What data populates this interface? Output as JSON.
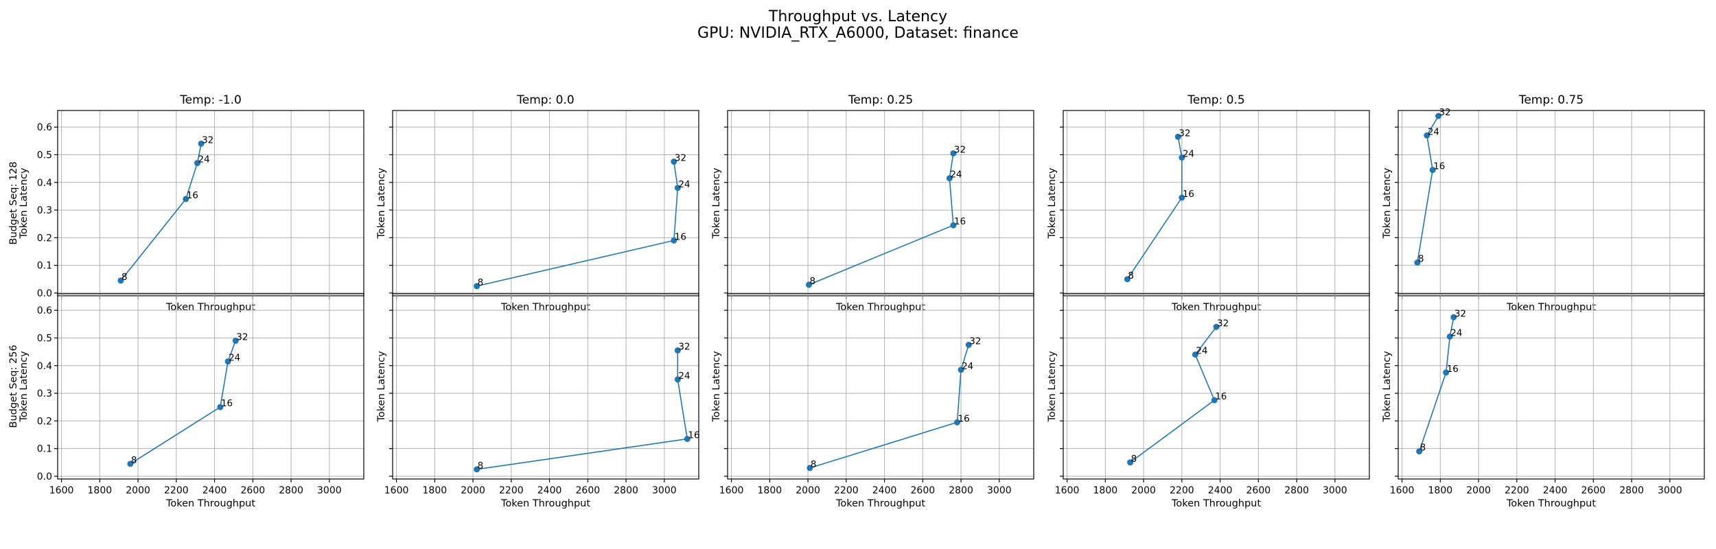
{
  "figure": {
    "title_line1": "Throughput vs. Latency",
    "title_line2": "GPU: NVIDIA_RTX_A6000, Dataset: finance"
  },
  "chart_data": {
    "type": "line",
    "marker": "circle",
    "grid": true,
    "color": "#1f77b4",
    "xlabel": "Token Throughput",
    "ylabel": "Token Latency",
    "xlim": [
      1580,
      3180
    ],
    "ylim": [
      -0.01,
      0.66
    ],
    "xticks": [
      1600,
      1800,
      2000,
      2200,
      2400,
      2600,
      2800,
      3000
    ],
    "yticks": [
      0.0,
      0.1,
      0.2,
      0.3,
      0.4,
      0.5,
      0.6
    ],
    "columns": [
      "Temp: -1.0",
      "Temp: 0.0",
      "Temp: 0.25",
      "Temp: 0.5",
      "Temp: 0.75"
    ],
    "rows": [
      "Budget Seq: 128",
      "Budget Seq: 256"
    ],
    "panels": [
      [
        {
          "points": [
            {
              "label": "8",
              "x": 1910,
              "y": 0.045
            },
            {
              "label": "16",
              "x": 2250,
              "y": 0.34
            },
            {
              "label": "24",
              "x": 2310,
              "y": 0.47
            },
            {
              "label": "32",
              "x": 2330,
              "y": 0.54
            }
          ]
        },
        {
          "points": [
            {
              "label": "8",
              "x": 2020,
              "y": 0.025
            },
            {
              "label": "16",
              "x": 3050,
              "y": 0.19
            },
            {
              "label": "24",
              "x": 3070,
              "y": 0.38
            },
            {
              "label": "32",
              "x": 3050,
              "y": 0.475
            }
          ]
        },
        {
          "points": [
            {
              "label": "8",
              "x": 2005,
              "y": 0.03
            },
            {
              "label": "16",
              "x": 2760,
              "y": 0.245
            },
            {
              "label": "24",
              "x": 2740,
              "y": 0.415
            },
            {
              "label": "32",
              "x": 2760,
              "y": 0.505
            }
          ]
        },
        {
          "points": [
            {
              "label": "8",
              "x": 1915,
              "y": 0.05
            },
            {
              "label": "16",
              "x": 2200,
              "y": 0.345
            },
            {
              "label": "24",
              "x": 2200,
              "y": 0.49
            },
            {
              "label": "32",
              "x": 2180,
              "y": 0.565
            }
          ]
        },
        {
          "points": [
            {
              "label": "8",
              "x": 1680,
              "y": 0.11
            },
            {
              "label": "16",
              "x": 1760,
              "y": 0.445
            },
            {
              "label": "24",
              "x": 1730,
              "y": 0.57
            },
            {
              "label": "32",
              "x": 1790,
              "y": 0.64
            }
          ]
        }
      ],
      [
        {
          "points": [
            {
              "label": "8",
              "x": 1960,
              "y": 0.045
            },
            {
              "label": "16",
              "x": 2430,
              "y": 0.25
            },
            {
              "label": "24",
              "x": 2470,
              "y": 0.415
            },
            {
              "label": "32",
              "x": 2510,
              "y": 0.49
            }
          ]
        },
        {
          "points": [
            {
              "label": "8",
              "x": 2020,
              "y": 0.025
            },
            {
              "label": "16",
              "x": 3120,
              "y": 0.135
            },
            {
              "label": "24",
              "x": 3070,
              "y": 0.35
            },
            {
              "label": "32",
              "x": 3070,
              "y": 0.455
            }
          ]
        },
        {
          "points": [
            {
              "label": "8",
              "x": 2010,
              "y": 0.03
            },
            {
              "label": "16",
              "x": 2780,
              "y": 0.195
            },
            {
              "label": "24",
              "x": 2800,
              "y": 0.385
            },
            {
              "label": "32",
              "x": 2840,
              "y": 0.475
            }
          ]
        },
        {
          "points": [
            {
              "label": "8",
              "x": 1930,
              "y": 0.05
            },
            {
              "label": "16",
              "x": 2370,
              "y": 0.275
            },
            {
              "label": "24",
              "x": 2270,
              "y": 0.44
            },
            {
              "label": "32",
              "x": 2380,
              "y": 0.54
            }
          ]
        },
        {
          "points": [
            {
              "label": "8",
              "x": 1690,
              "y": 0.09
            },
            {
              "label": "16",
              "x": 1830,
              "y": 0.375
            },
            {
              "label": "24",
              "x": 1850,
              "y": 0.505
            },
            {
              "label": "32",
              "x": 1870,
              "y": 0.575
            }
          ]
        }
      ]
    ]
  }
}
